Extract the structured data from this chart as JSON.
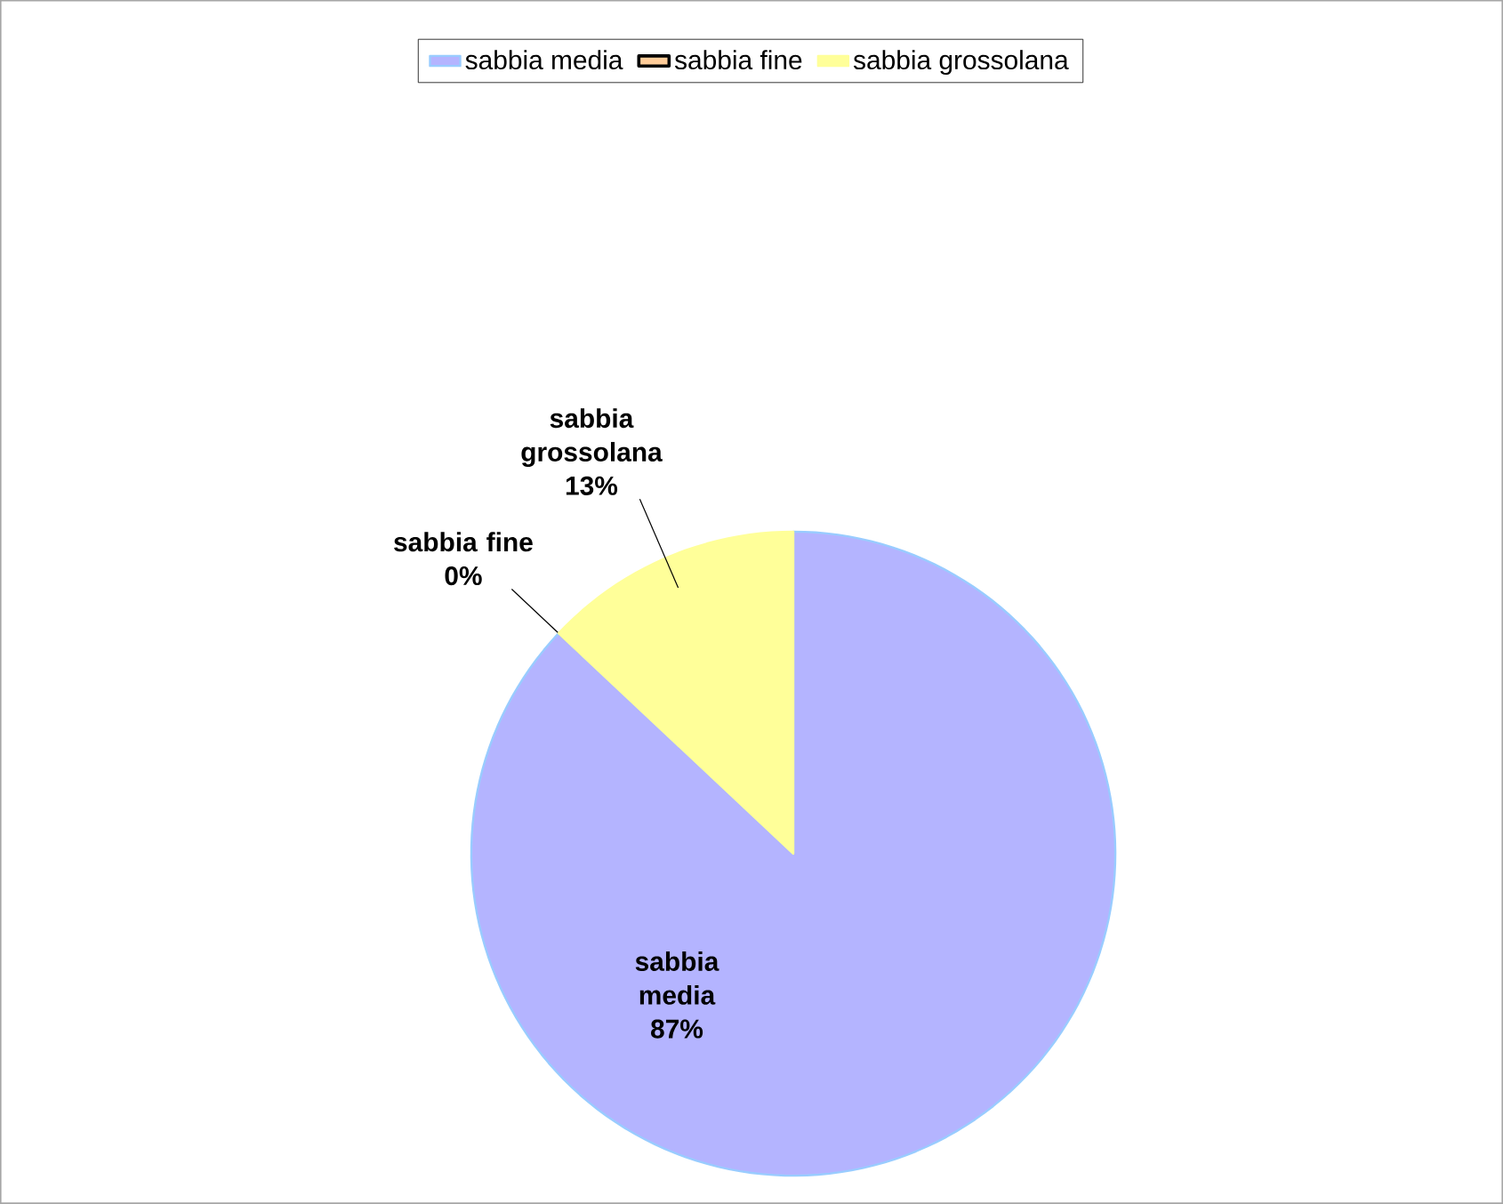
{
  "chart_data": {
    "type": "pie",
    "categories": [
      "sabbia media",
      "sabbia fine",
      "sabbia grossolana"
    ],
    "values": [
      87,
      0,
      13
    ],
    "value_labels": [
      "87%",
      "0%",
      "13%"
    ],
    "colors": [
      "#b4b4ff",
      "#ffcc99",
      "#ffff99"
    ],
    "legend": "top"
  }
}
